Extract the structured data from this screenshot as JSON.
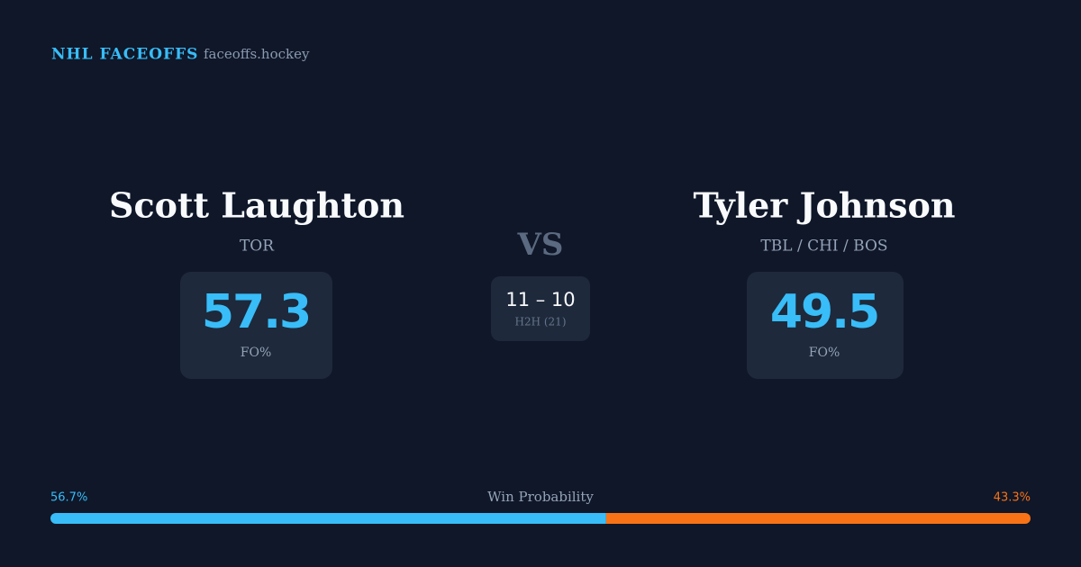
{
  "header": {
    "brand": "NHL FACEOFFS",
    "domain": "faceoffs.hockey"
  },
  "players": [
    {
      "name": "Scott Laughton",
      "team": "TOR",
      "fo_pct": 57.3,
      "fo_label": "FO%"
    },
    {
      "name": "Tyler Johnson",
      "team": "TBL / CHI / BOS",
      "fo_pct": 49.5,
      "fo_label": "FO%"
    }
  ],
  "versus": "VS",
  "head_to_head": {
    "score": "11 – 10",
    "label": "H2H (21)"
  },
  "win_probability": {
    "title": "Win Probability",
    "values": [
      56.7,
      43.3
    ],
    "value_labels": [
      "56.7%",
      "43.3%"
    ],
    "colors": [
      "#38bdf8",
      "#f97316"
    ]
  }
}
